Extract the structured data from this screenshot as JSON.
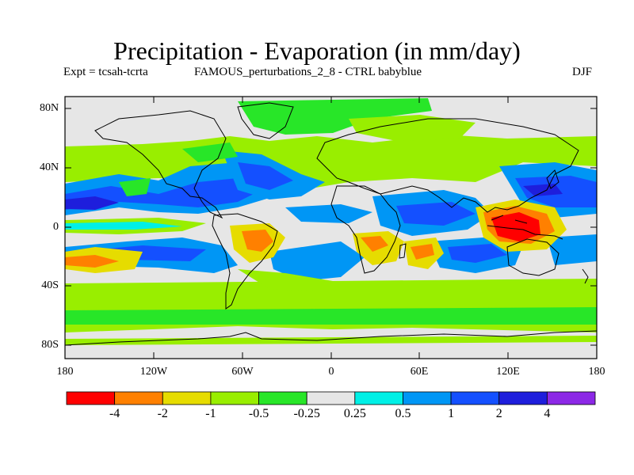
{
  "title": "Precipitation - Evaporation (in mm/day)",
  "subtitle_left": "Expt = tcsah-tcrta",
  "subtitle_center": "FAMOUS_perturbations_2_8 - CTRL babyblue",
  "season": "DJF",
  "lat_labels": [
    "80N",
    "40N",
    "0",
    "40S",
    "80S"
  ],
  "lon_labels": [
    "180",
    "120W",
    "60W",
    "0",
    "60E",
    "120E",
    "180"
  ],
  "colorbar": {
    "colors": [
      "#ff0000",
      "#ff8000",
      "#e6dc00",
      "#99ee00",
      "#28e628",
      "#e6e6e6",
      "#00f0e6",
      "#0096f5",
      "#1450ff",
      "#1e1edc",
      "#8c28e6"
    ],
    "labels": [
      "-4",
      "-2",
      "-1",
      "-0.5",
      "-0.25",
      "0.25",
      "0.5",
      "1",
      "2",
      "4"
    ]
  },
  "colors": {
    "neutral": "#e6e6e6",
    "coast": "#000000"
  }
}
